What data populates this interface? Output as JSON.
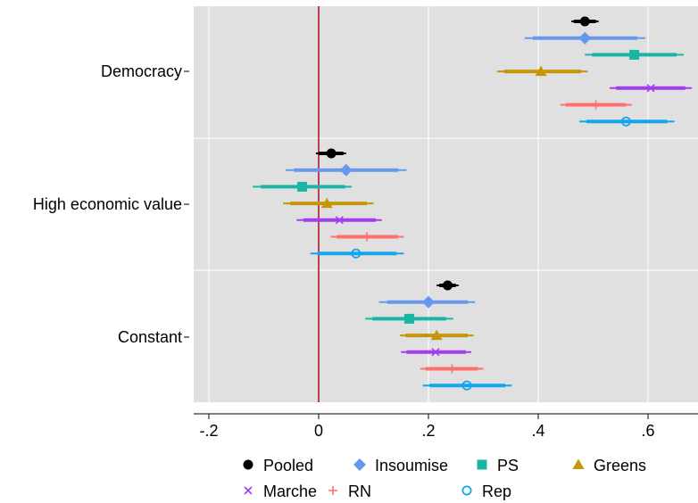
{
  "chart_data": {
    "type": "coefficient-plot",
    "orientation": "horizontal",
    "xlim": [
      -0.25,
      0.65
    ],
    "xticks": [
      -0.2,
      0,
      0.2,
      0.4,
      0.6
    ],
    "xtick_labels": [
      "-.2",
      "0",
      ".2",
      ".4",
      ".6"
    ],
    "reference_line": {
      "x": 0,
      "color": "#b2182b"
    },
    "grid": true,
    "background": "#e0e0e0",
    "legend_position": "bottom",
    "groups": [
      {
        "label": "Democracy"
      },
      {
        "label": "High economic value"
      },
      {
        "label": "Constant"
      }
    ],
    "series": [
      {
        "name": "Pooled",
        "color": "#000000",
        "marker": "circle",
        "estimates": [
          0.485,
          0.023,
          0.235
        ],
        "ci95": [
          [
            0.46,
            0.51
          ],
          [
            -0.005,
            0.05
          ],
          [
            0.215,
            0.255
          ]
        ],
        "ci90": [
          [
            0.465,
            0.505
          ],
          [
            0.0,
            0.045
          ],
          [
            0.22,
            0.25
          ]
        ]
      },
      {
        "name": "Insoumise",
        "color": "#6699ee",
        "marker": "diamond",
        "estimates": [
          0.485,
          0.05,
          0.2
        ],
        "ci95": [
          [
            0.375,
            0.595
          ],
          [
            -0.06,
            0.16
          ],
          [
            0.11,
            0.285
          ]
        ],
        "ci90": [
          [
            0.39,
            0.58
          ],
          [
            -0.045,
            0.145
          ],
          [
            0.125,
            0.272
          ]
        ]
      },
      {
        "name": "PS",
        "color": "#1bb5a5",
        "marker": "square",
        "estimates": [
          0.575,
          -0.03,
          0.165
        ],
        "ci95": [
          [
            0.485,
            0.665
          ],
          [
            -0.12,
            0.06
          ],
          [
            0.085,
            0.245
          ]
        ],
        "ci90": [
          [
            0.498,
            0.652
          ],
          [
            -0.105,
            0.048
          ],
          [
            0.098,
            0.232
          ]
        ]
      },
      {
        "name": "Greens",
        "color": "#c5950a",
        "marker": "triangle",
        "estimates": [
          0.405,
          0.015,
          0.215
        ],
        "ci95": [
          [
            0.325,
            0.49
          ],
          [
            -0.065,
            0.1
          ],
          [
            0.148,
            0.282
          ]
        ],
        "ci90": [
          [
            0.338,
            0.478
          ],
          [
            -0.052,
            0.088
          ],
          [
            0.158,
            0.272
          ]
        ]
      },
      {
        "name": "Marche",
        "color": "#a23ef0",
        "marker": "x",
        "estimates": [
          0.605,
          0.038,
          0.213
        ],
        "ci95": [
          [
            0.53,
            0.68
          ],
          [
            -0.04,
            0.115
          ],
          [
            0.15,
            0.278
          ]
        ],
        "ci90": [
          [
            0.542,
            0.668
          ],
          [
            -0.028,
            0.104
          ],
          [
            0.16,
            0.268
          ]
        ]
      },
      {
        "name": "RN",
        "color": "#ff6f6f",
        "marker": "plus",
        "estimates": [
          0.505,
          0.088,
          0.243
        ],
        "ci95": [
          [
            0.44,
            0.57
          ],
          [
            0.022,
            0.155
          ],
          [
            0.185,
            0.3
          ]
        ],
        "ci90": [
          [
            0.45,
            0.56
          ],
          [
            0.033,
            0.145
          ],
          [
            0.195,
            0.29
          ]
        ]
      },
      {
        "name": "Rep",
        "color": "#14a6ec",
        "marker": "circle-open",
        "estimates": [
          0.56,
          0.068,
          0.27
        ],
        "ci95": [
          [
            0.475,
            0.648
          ],
          [
            -0.015,
            0.155
          ],
          [
            0.19,
            0.352
          ]
        ],
        "ci90": [
          [
            0.488,
            0.635
          ],
          [
            -0.002,
            0.142
          ],
          [
            0.202,
            0.34
          ]
        ]
      }
    ]
  }
}
